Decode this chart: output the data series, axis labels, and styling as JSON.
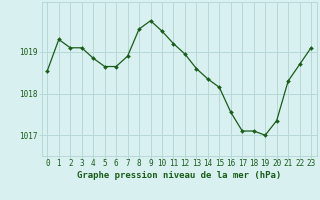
{
  "x": [
    0,
    1,
    2,
    3,
    4,
    5,
    6,
    7,
    8,
    9,
    10,
    11,
    12,
    13,
    14,
    15,
    16,
    17,
    18,
    19,
    20,
    21,
    22,
    23
  ],
  "y": [
    1018.55,
    1019.3,
    1019.1,
    1019.1,
    1018.85,
    1018.65,
    1018.65,
    1018.9,
    1019.55,
    1019.75,
    1019.5,
    1019.2,
    1018.95,
    1018.6,
    1018.35,
    1018.15,
    1017.55,
    1017.1,
    1017.1,
    1017.0,
    1017.35,
    1018.3,
    1018.7,
    1019.1
  ],
  "line_color": "#1a5c1a",
  "marker": "D",
  "marker_size": 2.0,
  "linewidth": 0.9,
  "background_color": "#d8f0f0",
  "grid_color": "#b8d8d8",
  "xlabel": "Graphe pression niveau de la mer (hPa)",
  "xlabel_fontsize": 6.5,
  "ytick_labels": [
    1017,
    1018,
    1019
  ],
  "xtick_labels": [
    "0",
    "1",
    "2",
    "3",
    "4",
    "5",
    "6",
    "7",
    "8",
    "9",
    "10",
    "11",
    "12",
    "13",
    "14",
    "15",
    "16",
    "17",
    "18",
    "19",
    "20",
    "21",
    "22",
    "23"
  ],
  "ylim": [
    1016.5,
    1020.2
  ],
  "xlim": [
    -0.5,
    23.5
  ],
  "tick_fontsize": 5.5,
  "ylabel_fontsize": 5.5
}
